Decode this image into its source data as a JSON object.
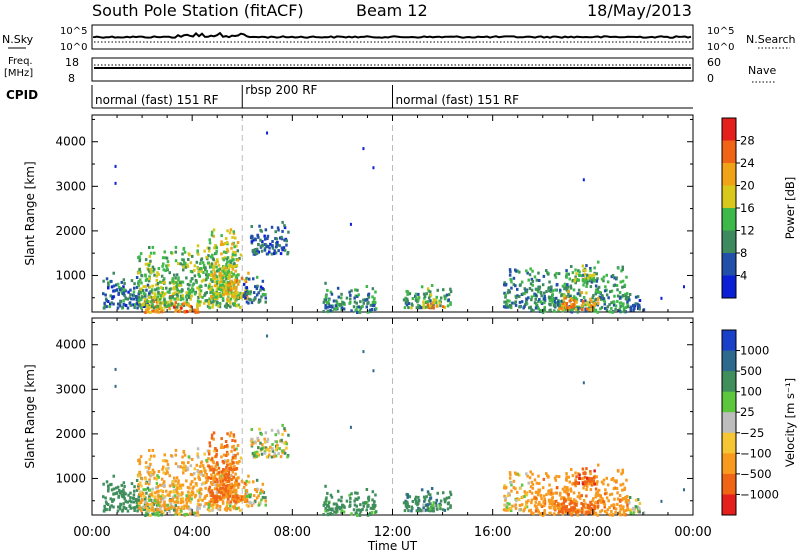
{
  "header": {
    "station": "South Pole Station (fitACF)",
    "beam": "Beam 12",
    "date": "18/May/2013"
  },
  "strips": {
    "nsky_label": "N.Sky",
    "nsearch_label": "N.Search",
    "nsky_ticks": [
      "10^5",
      "10^0"
    ],
    "nsearch_ticks": [
      "10^5",
      "10^0"
    ],
    "freq_label_1": "Freq.",
    "freq_label_2": "[MHz]",
    "freq_ticks": [
      "18",
      "8"
    ],
    "nave_label": "Nave",
    "nave_ticks": [
      "60",
      "0"
    ],
    "cpid_label": "CPID"
  },
  "cpid_segments": [
    {
      "label": "normal (fast) 151 RF",
      "start": 0,
      "end": 6
    },
    {
      "label": "rbsp 200 RF",
      "start": 6,
      "end": 12
    },
    {
      "label": "normal (fast) 151 RF",
      "start": 12,
      "end": 24
    }
  ],
  "colors": {
    "power": [
      "#0a1fd6",
      "#2250a8",
      "#3d8a5e",
      "#3fb84a",
      "#d8c81b",
      "#f0a317",
      "#f06515",
      "#e51f1b"
    ],
    "velocity": [
      "#e51f1b",
      "#f06515",
      "#f79a1e",
      "#f5c533",
      "#bdbdbd",
      "#5cc63c",
      "#3f8e5c",
      "#2e6a8e",
      "#1a3fc8"
    ]
  },
  "chart_data": [
    {
      "type": "heatmap",
      "name_text": "Power",
      "ylabel": "Slant Range [km]",
      "xlabel": "Time UT",
      "xlim": [
        0,
        24
      ],
      "ylim": [
        180,
        4600
      ],
      "x_ticks": [
        "00:00",
        "04:00",
        "08:00",
        "12:00",
        "16:00",
        "20:00",
        "00:00"
      ],
      "y_ticks": [
        "1000",
        "2000",
        "3000",
        "4000"
      ],
      "colorbar_label": "Power [dB]",
      "colorbar_ticks": [
        "4",
        "8",
        "12",
        "16",
        "20",
        "24",
        "28"
      ],
      "clim": [
        0,
        32
      ],
      "blobs": [
        {
          "t0": 0.4,
          "t1": 2.3,
          "r0": 300,
          "r1": 1150,
          "v": 8
        },
        {
          "t0": 2.0,
          "t1": 3.4,
          "r0": 200,
          "r1": 650,
          "v": 22
        },
        {
          "t0": 1.8,
          "t1": 5.9,
          "r0": 300,
          "r1": 1900,
          "v": 14
        },
        {
          "t0": 4.6,
          "t1": 5.8,
          "r0": 500,
          "r1": 2400,
          "v": 17
        },
        {
          "t0": 3.2,
          "t1": 4.2,
          "r0": 200,
          "r1": 500,
          "v": 24
        },
        {
          "t0": 5.2,
          "t1": 6.2,
          "r0": 500,
          "r1": 1100,
          "v": 21
        },
        {
          "t0": 6.3,
          "t1": 7.8,
          "r0": 1500,
          "r1": 2300,
          "v": 6
        },
        {
          "t0": 6.0,
          "t1": 6.9,
          "r0": 400,
          "r1": 1100,
          "v": 8
        },
        {
          "t0": 9.2,
          "t1": 11.3,
          "r0": 200,
          "r1": 900,
          "v": 10
        },
        {
          "t0": 12.4,
          "t1": 14.3,
          "r0": 300,
          "r1": 850,
          "v": 12
        },
        {
          "t0": 13.1,
          "t1": 14.0,
          "r0": 300,
          "r1": 550,
          "v": 22
        },
        {
          "t0": 16.4,
          "t1": 17.4,
          "r0": 300,
          "r1": 1300,
          "v": 9
        },
        {
          "t0": 17.4,
          "t1": 21.4,
          "r0": 200,
          "r1": 1350,
          "v": 11
        },
        {
          "t0": 18.6,
          "t1": 20.2,
          "r0": 250,
          "r1": 700,
          "v": 23
        },
        {
          "t0": 19.2,
          "t1": 20.2,
          "r0": 900,
          "r1": 1300,
          "v": 16
        },
        {
          "t0": 21.3,
          "t1": 22.0,
          "r0": 250,
          "r1": 650,
          "v": 6
        }
      ],
      "points": [
        {
          "t": 0.9,
          "r": 3480
        },
        {
          "t": 0.9,
          "r": 3100
        },
        {
          "t": 6.95,
          "r": 4230
        },
        {
          "t": 10.8,
          "r": 3880
        },
        {
          "t": 11.2,
          "r": 3450
        },
        {
          "t": 10.3,
          "r": 2180
        },
        {
          "t": 19.6,
          "r": 3180
        },
        {
          "t": 22.7,
          "r": 520
        },
        {
          "t": 23.6,
          "r": 780
        }
      ]
    },
    {
      "type": "heatmap",
      "name_text": "Velocity",
      "ylabel": "Slant Range [km]",
      "xlabel": "Time UT",
      "xlim": [
        0,
        24
      ],
      "ylim": [
        180,
        4600
      ],
      "x_ticks": [
        "00:00",
        "04:00",
        "08:00",
        "12:00",
        "16:00",
        "20:00",
        "00:00"
      ],
      "y_ticks": [
        "1000",
        "2000",
        "3000",
        "4000"
      ],
      "colorbar_label": "Velocity [m s⁻¹]",
      "colorbar_ticks": [
        "1000",
        "500",
        "100",
        "25",
        "−25",
        "−100",
        "−500",
        "−1000"
      ],
      "clim": [
        -1200,
        1200
      ],
      "blobs": [
        {
          "t0": 0.4,
          "t1": 2.3,
          "r0": 300,
          "r1": 1150,
          "v": 300
        },
        {
          "t0": 2.0,
          "t1": 3.4,
          "r0": 200,
          "r1": 650,
          "v": 50
        },
        {
          "t0": 1.8,
          "t1": 5.9,
          "r0": 300,
          "r1": 1900,
          "v": -150
        },
        {
          "t0": 4.6,
          "t1": 5.8,
          "r0": 500,
          "r1": 2400,
          "v": -600
        },
        {
          "t0": 3.2,
          "t1": 4.2,
          "r0": 200,
          "r1": 500,
          "v": -80
        },
        {
          "t0": 5.2,
          "t1": 6.2,
          "r0": 500,
          "r1": 1100,
          "v": -450
        },
        {
          "t0": 6.3,
          "t1": 7.8,
          "r0": 1500,
          "r1": 2300,
          "v": -30
        },
        {
          "t0": 6.0,
          "t1": 6.9,
          "r0": 400,
          "r1": 1100,
          "v": -40
        },
        {
          "t0": 9.2,
          "t1": 11.3,
          "r0": 200,
          "r1": 900,
          "v": 250
        },
        {
          "t0": 12.4,
          "t1": 14.3,
          "r0": 300,
          "r1": 850,
          "v": 400
        },
        {
          "t0": 13.1,
          "t1": 14.0,
          "r0": 300,
          "r1": 550,
          "v": 150
        },
        {
          "t0": 16.4,
          "t1": 17.4,
          "r0": 300,
          "r1": 1300,
          "v": -120
        },
        {
          "t0": 17.4,
          "t1": 21.4,
          "r0": 200,
          "r1": 1350,
          "v": -350
        },
        {
          "t0": 18.6,
          "t1": 20.2,
          "r0": 250,
          "r1": 700,
          "v": -700
        },
        {
          "t0": 19.2,
          "t1": 20.2,
          "r0": 900,
          "r1": 1300,
          "v": -900
        },
        {
          "t0": 21.3,
          "t1": 22.0,
          "r0": 250,
          "r1": 650,
          "v": 0
        }
      ],
      "points": [
        {
          "t": 0.9,
          "r": 3480
        },
        {
          "t": 0.9,
          "r": 3100
        },
        {
          "t": 6.95,
          "r": 4230
        },
        {
          "t": 10.8,
          "r": 3880
        },
        {
          "t": 11.2,
          "r": 3450
        },
        {
          "t": 10.3,
          "r": 2180
        },
        {
          "t": 19.6,
          "r": 3180
        },
        {
          "t": 22.7,
          "r": 520
        },
        {
          "t": 23.6,
          "r": 780
        }
      ]
    }
  ]
}
